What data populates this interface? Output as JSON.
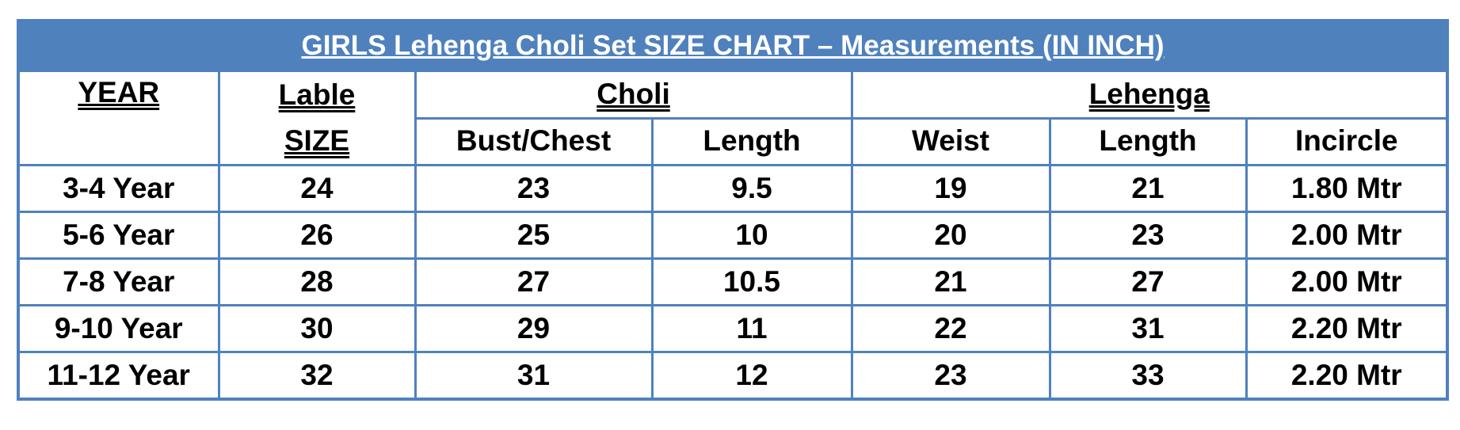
{
  "title": "GIRLS Lehenga Choli Set SIZE CHART – Measurements (IN INCH)",
  "header": {
    "year": "YEAR",
    "label_size": "Lable SIZE",
    "choli": "Choli",
    "lehenga": "Lehenga",
    "sub": [
      "Bust/Chest",
      "Length",
      "Weist",
      "Length",
      "Incircle"
    ]
  },
  "rows": [
    [
      "3-4 Year",
      "24",
      "23",
      "9.5",
      "19",
      "21",
      "1.80 Mtr"
    ],
    [
      "5-6 Year",
      "26",
      "25",
      "10",
      "20",
      "23",
      "2.00 Mtr"
    ],
    [
      "7-8 Year",
      "28",
      "27",
      "10.5",
      "21",
      "27",
      "2.00 Mtr"
    ],
    [
      "9-10 Year",
      "30",
      "29",
      "11",
      "22",
      "31",
      "2.20 Mtr"
    ],
    [
      "11-12 Year",
      "32",
      "31",
      "12",
      "23",
      "33",
      "2.20 Mtr"
    ]
  ]
}
